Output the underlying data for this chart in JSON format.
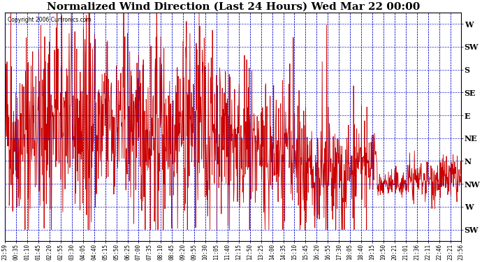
{
  "title": "Normalized Wind Direction (Last 24 Hours) Wed Mar 22 00:00",
  "copyright": "Copyright 2006 Curtronics.com",
  "background_color": "#ffffff",
  "plot_bg_color": "#ffffff",
  "line_color": "#cc0000",
  "grid_color": "#0000cc",
  "title_fontsize": 11,
  "ytick_labels": [
    "W",
    "SW",
    "S",
    "SE",
    "E",
    "NE",
    "N",
    "NW",
    "W",
    "SW"
  ],
  "ytick_values": [
    10,
    9,
    8,
    7,
    6,
    5,
    4,
    3,
    2,
    1
  ],
  "ylim": [
    0.5,
    10.5
  ],
  "xtick_labels": [
    "23:59",
    "00:35",
    "01:10",
    "01:45",
    "02:20",
    "02:55",
    "03:30",
    "04:05",
    "04:40",
    "05:15",
    "05:50",
    "06:25",
    "07:00",
    "07:35",
    "08:10",
    "08:45",
    "09:20",
    "09:55",
    "10:30",
    "11:05",
    "11:40",
    "12:15",
    "12:50",
    "13:25",
    "14:00",
    "14:35",
    "15:10",
    "15:45",
    "16:20",
    "16:55",
    "17:30",
    "18:05",
    "18:40",
    "19:15",
    "19:50",
    "20:21",
    "21:01",
    "21:36",
    "22:11",
    "22:46",
    "23:21",
    "23:56"
  ],
  "seed": 42
}
